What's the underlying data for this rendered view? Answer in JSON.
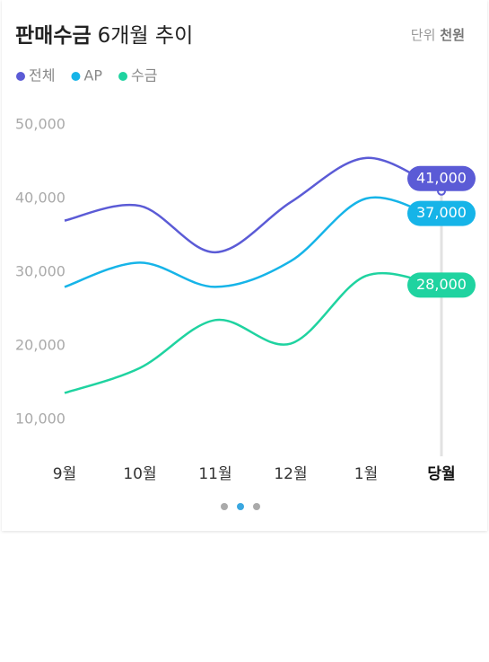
{
  "chart_data": {
    "type": "line",
    "title": "판매수금",
    "subtitle": "6개월 추이",
    "unit_label": "단위",
    "unit": "천원",
    "categories": [
      "9월",
      "10월",
      "11월",
      "12월",
      "1월",
      "당월"
    ],
    "series": [
      {
        "name": "전체",
        "color": "#5b5bd6",
        "values": [
          37000,
          39000,
          32700,
          39500,
          45500,
          41000
        ],
        "value_labels": [
          null,
          null,
          null,
          null,
          null,
          "41,000"
        ]
      },
      {
        "name": "AP",
        "color": "#16b4e8",
        "values": [
          28000,
          31300,
          28000,
          31500,
          40000,
          37000
        ],
        "value_labels": [
          null,
          null,
          null,
          null,
          null,
          "37,000"
        ]
      },
      {
        "name": "수금",
        "color": "#1fd3a0",
        "values": [
          13600,
          17000,
          23500,
          20300,
          29500,
          28000
        ],
        "value_labels": [
          null,
          null,
          null,
          null,
          null,
          "28,000"
        ]
      }
    ],
    "ylim": [
      5000,
      55000
    ],
    "yticks": [
      {
        "value": 10000,
        "label": "10,000"
      },
      {
        "value": 20000,
        "label": "20,000"
      },
      {
        "value": 30000,
        "label": "30,000"
      },
      {
        "value": 40000,
        "label": "40,000"
      },
      {
        "value": 50000,
        "label": "50,000"
      }
    ],
    "grid": false
  }
}
